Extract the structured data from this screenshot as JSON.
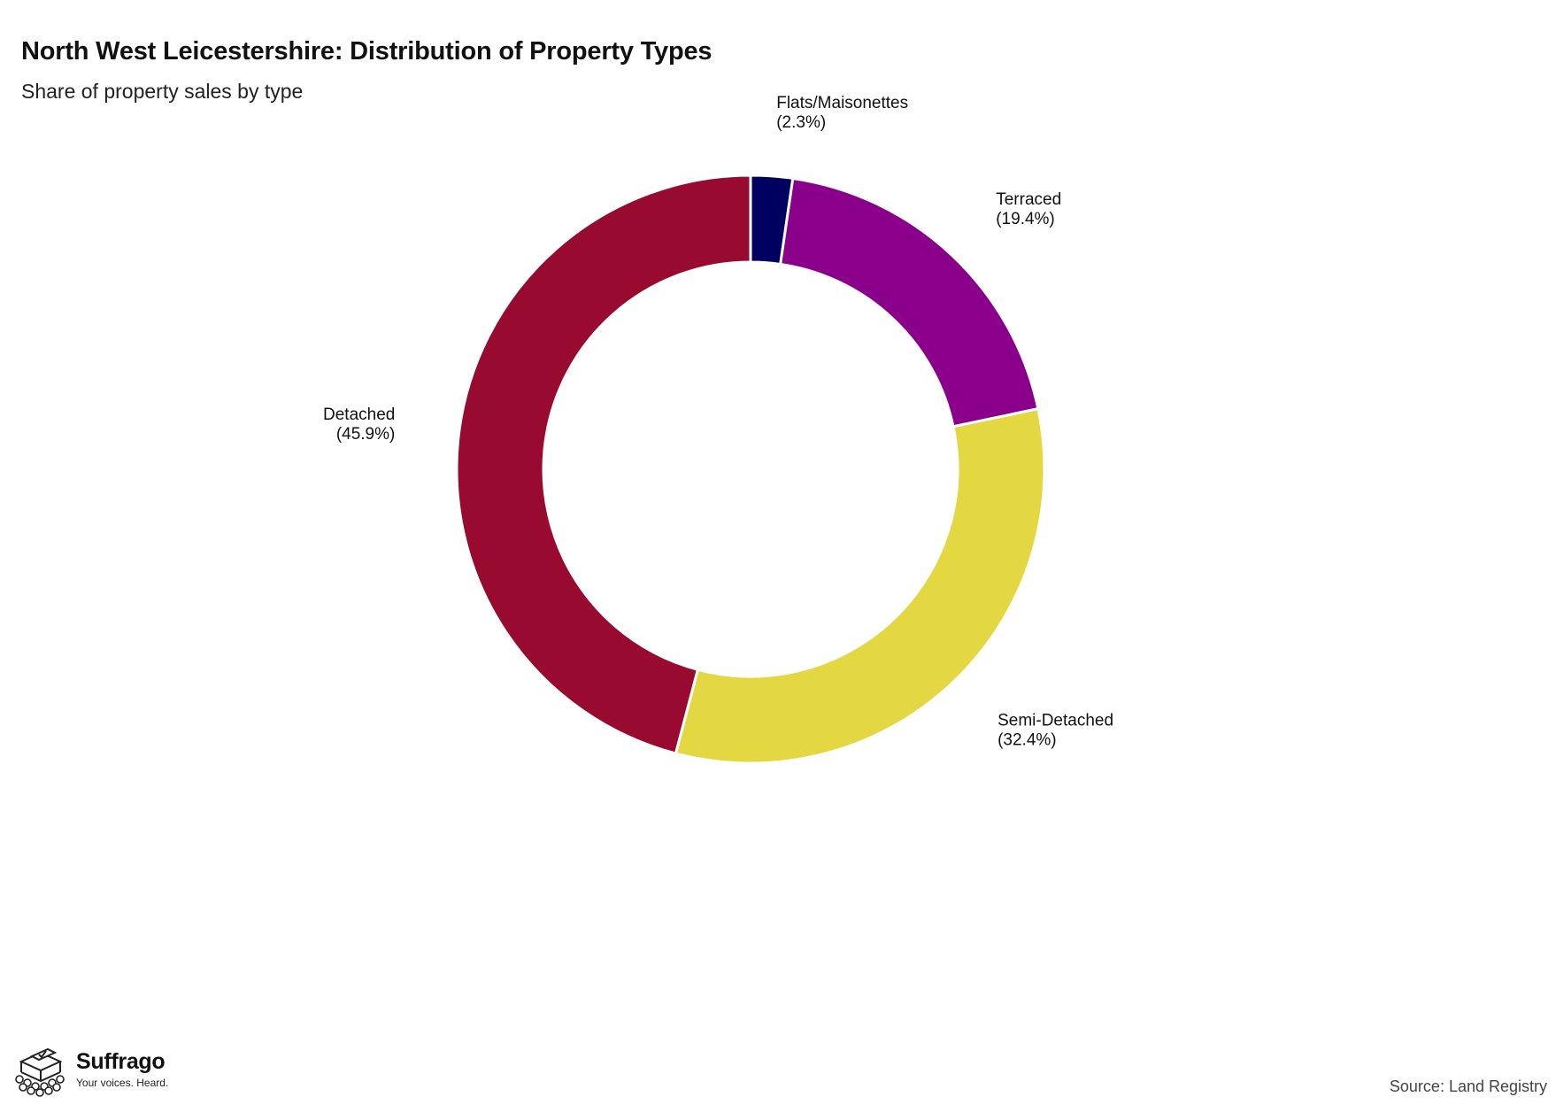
{
  "header": {
    "title": "North West Leicestershire: Distribution of Property Types",
    "subtitle": "Share of property sales by type"
  },
  "chart_data": {
    "type": "pie",
    "variant": "donut",
    "title": "North West Leicestershire: Distribution of Property Types",
    "subtitle": "Share of property sales by type",
    "start_angle_deg": 0,
    "direction": "clockwise",
    "slices": [
      {
        "label": "Flats/Maisonettes",
        "value_label": "(2.3%)",
        "value": 2.3,
        "color": "#000060"
      },
      {
        "label": "Terraced",
        "value_label": "(19.4%)",
        "value": 19.4,
        "color": "#8b008b"
      },
      {
        "label": "Semi-Detached",
        "value_label": "(32.4%)",
        "value": 32.4,
        "color": "#e3d742"
      },
      {
        "label": "Detached",
        "value_label": "(45.9%)",
        "value": 45.9,
        "color": "#990a30"
      }
    ]
  },
  "footer": {
    "source": "Source: Land Registry",
    "brand_name": "Suffrago",
    "brand_tagline": "Your voices. Heard."
  }
}
